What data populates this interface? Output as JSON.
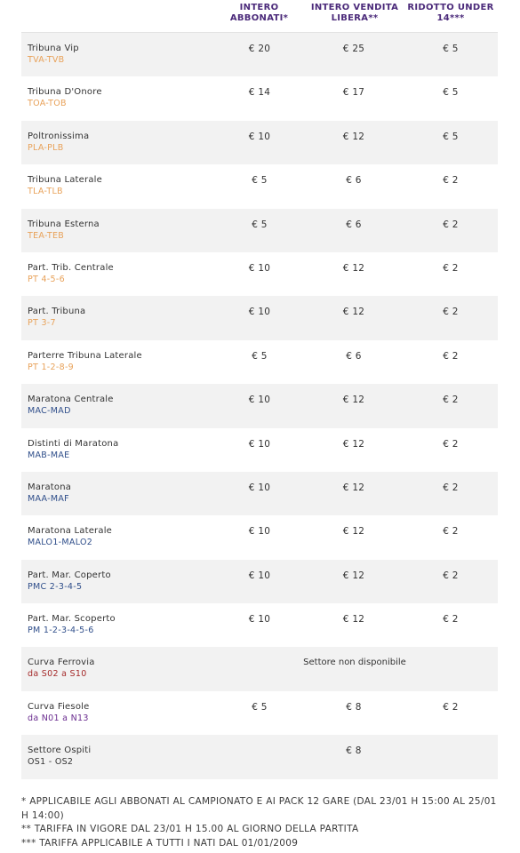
{
  "header": {
    "col1": "INTERO ABBONATI*",
    "col2": "INTERO VENDITA LIBERA**",
    "col3": "RIDOTTO UNDER 14***"
  },
  "rows": [
    {
      "name": "Tribuna Vip",
      "code": "TVA-TVB",
      "code_color": "orange",
      "p1": "€ 20",
      "p2": "€ 25",
      "p3": "€ 5"
    },
    {
      "name": "Tribuna D'Onore",
      "code": "TOA-TOB",
      "code_color": "orange",
      "p1": "€ 14",
      "p2": "€ 17",
      "p3": "€ 5"
    },
    {
      "name": "Poltronissima",
      "code": "PLA-PLB",
      "code_color": "orange",
      "p1": "€ 10",
      "p2": "€ 12",
      "p3": "€ 5"
    },
    {
      "name": "Tribuna Laterale",
      "code": "TLA-TLB",
      "code_color": "orange",
      "p1": "€ 5",
      "p2": "€ 6",
      "p3": "€ 2"
    },
    {
      "name": "Tribuna Esterna",
      "code": "TEA-TEB",
      "code_color": "orange",
      "p1": "€ 5",
      "p2": "€ 6",
      "p3": "€ 2"
    },
    {
      "name": "Part. Trib. Centrale",
      "code": "PT 4-5-6",
      "code_color": "orange",
      "p1": "€ 10",
      "p2": "€ 12",
      "p3": "€ 2"
    },
    {
      "name": "Part. Tribuna",
      "code": "PT 3-7",
      "code_color": "orange",
      "p1": "€ 10",
      "p2": "€ 12",
      "p3": "€ 2"
    },
    {
      "name": "Parterre Tribuna Laterale",
      "code": "PT 1-2-8-9",
      "code_color": "orange",
      "p1": "€ 5",
      "p2": "€ 6",
      "p3": "€ 2"
    },
    {
      "name": "Maratona Centrale",
      "code": "MAC-MAD",
      "code_color": "blue",
      "p1": "€ 10",
      "p2": "€ 12",
      "p3": "€ 2"
    },
    {
      "name": "Distinti di Maratona",
      "code": "MAB-MAE",
      "code_color": "blue",
      "p1": "€ 10",
      "p2": "€ 12",
      "p3": "€ 2"
    },
    {
      "name": "Maratona",
      "code": "MAA-MAF",
      "code_color": "blue",
      "p1": "€ 10",
      "p2": "€ 12",
      "p3": "€ 2"
    },
    {
      "name": "Maratona Laterale",
      "code": "MALO1-MALO2",
      "code_color": "blue",
      "p1": "€ 10",
      "p2": "€ 12",
      "p3": "€ 2"
    },
    {
      "name": "Part. Mar. Coperto",
      "code": "PMC 2-3-4-5",
      "code_color": "blue",
      "p1": "€ 10",
      "p2": "€ 12",
      "p3": "€ 2"
    },
    {
      "name": "Part. Mar. Scoperto",
      "code": "PM 1-2-3-4-5-6",
      "code_color": "blue",
      "p1": "€ 10",
      "p2": "€ 12",
      "p3": "€ 2"
    },
    {
      "name": "Curva Ferrovia",
      "code": "da S02 a S10",
      "code_color": "red",
      "merged": "Settore non disponibile"
    },
    {
      "name": "Curva Fiesole",
      "code": "da N01 a N13",
      "code_color": "purple",
      "p1": "€ 5",
      "p2": "€ 8",
      "p3": "€ 2"
    },
    {
      "name": "Settore Ospiti",
      "code": "OS1 - OS2",
      "code_color": "dark",
      "p1": "",
      "p2": "€ 8",
      "p3": ""
    }
  ],
  "notes": [
    "* APPLICABILE AGLI ABBONATI AL CAMPIONATO E AI PACK 12 GARE (DAL 23/01 H 15:00 AL 25/01 H 14:00)",
    "** TARIFFA IN VIGORE DAL 23/01 H 15.00 AL GIORNO DELLA PARTITA",
    "*** TARIFFA APPLICABILE A TUTTI I NATI DAL 01/01/2009"
  ],
  "colors": {
    "header": "#4b2a7a",
    "orange": "#e8a25a",
    "blue": "#2f4e8a",
    "red": "#a52a2a",
    "purple": "#6a2c8f",
    "shade": "#f2f2f2"
  }
}
